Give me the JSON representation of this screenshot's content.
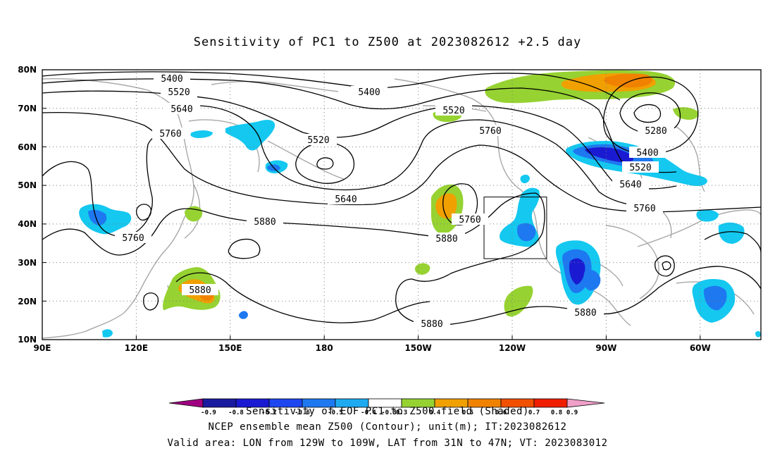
{
  "title": "Sensitivity of PC1 to Z500 at 2023082612 +2.5 day",
  "axes": {
    "lat_labels": [
      "80N",
      "70N",
      "60N",
      "50N",
      "40N",
      "30N",
      "20N",
      "10N"
    ],
    "lon_labels": [
      "90E",
      "120E",
      "150E",
      "180",
      "150W",
      "120W",
      "90W",
      "60W"
    ]
  },
  "contour_labels": {
    "c5400a": "5400",
    "c5400b": "5400",
    "c5400c": "5400",
    "c5520a": "5520",
    "c5520b": "5520",
    "c5520c": "5520",
    "c5520d": "5520",
    "c5640a": "5640",
    "c5640b": "5640",
    "c5640c": "5640",
    "c5760a": "5760",
    "c5760b": "5760",
    "c5760c": "5760",
    "c5760d": "5760",
    "c5760e": "5760",
    "c5880a": "5880",
    "c5880b": "5880",
    "c5880c": "5880",
    "c5880d": "5880",
    "c5880e": "5880",
    "c5280": "5280"
  },
  "colorbar": {
    "ticks": [
      "-0.9",
      "-0.8",
      "-0.7",
      "-0.6",
      "-0.5",
      "-0.4",
      "-0.3",
      "0.3",
      "0.4",
      "0.5",
      "0.6",
      "0.7",
      "0.8",
      "0.9"
    ],
    "colors": [
      "#a00080",
      "#1a1aa0",
      "#1a1ad2",
      "#1e46f0",
      "#1e78f0",
      "#1eaaf0",
      "#14c8f0",
      "#ffffff",
      "#96d232",
      "#f0a000",
      "#f08200",
      "#f05000",
      "#f01e00",
      "#f000a0"
    ]
  },
  "footer": {
    "line1": "Sensitivity of EOF PC1 to Z500 field (Shaded)",
    "line2": "NCEP ensemble mean Z500 (Contour); unit(m); IT:2023082612",
    "line3": "Valid area: LON from 129W to 109W, LAT from 31N to 47N; VT: 2023083012"
  },
  "valid_area": {
    "lon_from": "129W",
    "lon_to": "109W",
    "lat_from": "31N",
    "lat_to": "47N"
  }
}
